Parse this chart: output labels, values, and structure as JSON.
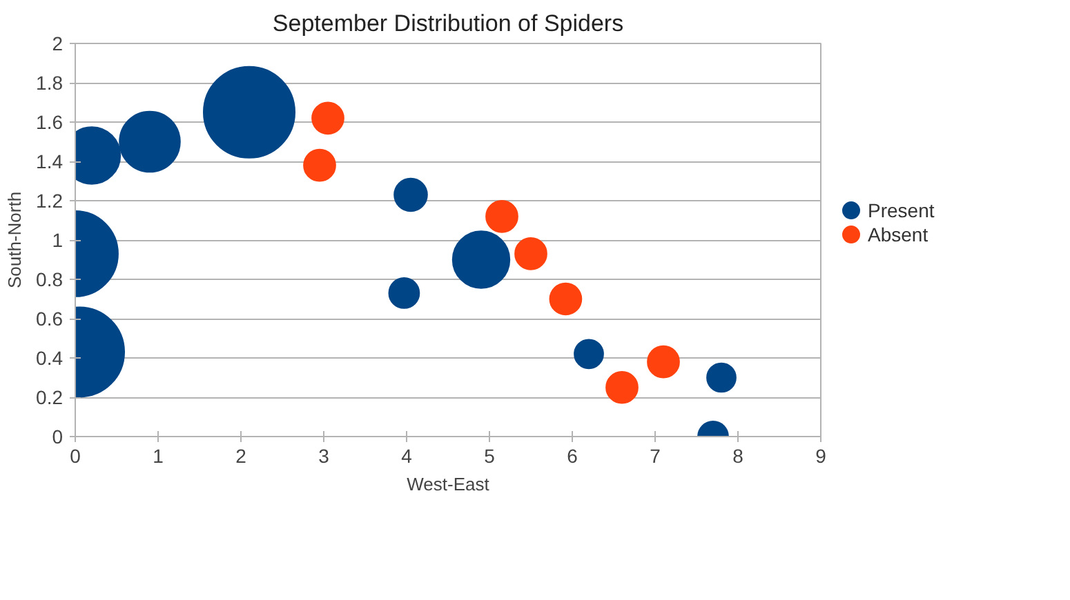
{
  "chart_data": {
    "type": "bubble",
    "title": "September Distribution of Spiders",
    "xlabel": "West-East",
    "ylabel": "South-North",
    "xlim": [
      0,
      9
    ],
    "xticks": [
      0,
      1,
      2,
      3,
      4,
      5,
      6,
      7,
      8,
      9
    ],
    "ylim": [
      0,
      2
    ],
    "yticks": [
      0,
      0.2,
      0.4,
      0.6,
      0.8,
      1,
      1.2,
      1.4,
      1.6,
      1.8,
      2
    ],
    "grid": "y",
    "legend": "right",
    "series": [
      {
        "name": "Present",
        "color": "#004586",
        "x": [
          0.2,
          0.9,
          2.1,
          0.0,
          0.05,
          4.05,
          3.97,
          4.9,
          6.2,
          7.8,
          7.7
        ],
        "values": [
          1.43,
          1.5,
          1.65,
          0.93,
          0.43,
          1.23,
          0.73,
          0.9,
          0.42,
          0.3,
          0.0
        ],
        "sizes": [
          0.39,
          0.44,
          1,
          0.88,
          0.97,
          0.13,
          0.11,
          0.39,
          0.1,
          0.1,
          0.11
        ]
      },
      {
        "name": "Absent",
        "color": "#ff420e",
        "x": [
          3.05,
          2.95,
          5.15,
          5.5,
          5.92,
          7.1,
          6.6
        ],
        "values": [
          1.62,
          1.38,
          1.12,
          0.93,
          0.7,
          0.38,
          0.25
        ],
        "sizes": [
          0.12,
          0.12,
          0.12,
          0.12,
          0.12,
          0.12,
          0.12
        ]
      }
    ]
  }
}
